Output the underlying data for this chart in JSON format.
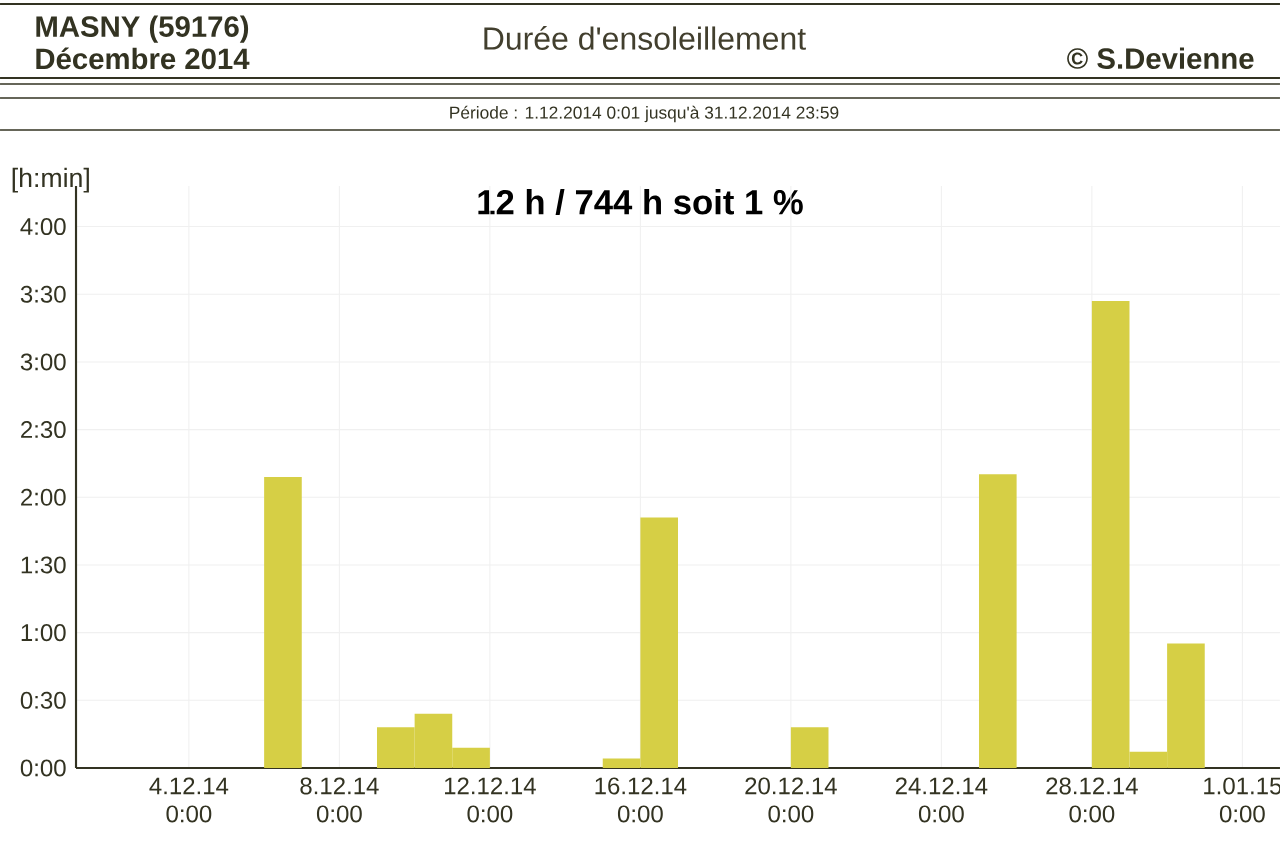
{
  "chart_data": {
    "type": "bar",
    "title": "Durée d'ensoleillement",
    "subtitle": "Période :  1.12.2014   0:01   jusqu'à  31.12.2014   23:59",
    "ylabel": "[h:min]",
    "annotations": [
      "MASNY (59176)",
      "Décembre  2014",
      "© S.Devienne",
      "12 h / 744 h  soit  1 %"
    ],
    "x": [
      "2014-12-06T12:00",
      "2014-12-09T12:00",
      "2014-12-10T12:00",
      "2014-12-11T12:00",
      "2014-12-15T12:00",
      "2014-12-16T12:00",
      "2014-12-20T12:00",
      "2014-12-25T12:00",
      "2014-12-28T12:00",
      "2014-12-29T12:00",
      "2014-12-30T12:00"
    ],
    "values": [
      2.15,
      0.3,
      0.4,
      0.15,
      0.07,
      1.85,
      0.3,
      2.17,
      3.45,
      0.12,
      0.92
    ],
    "color": "#d6cf45",
    "xlim": [
      "2014-12-01",
      "2015-01-02"
    ],
    "xticks": [
      {
        "value": "2014-12-04",
        "label": "4.12.14 0:00"
      },
      {
        "value": "2014-12-08",
        "label": "8.12.14 0:00"
      },
      {
        "value": "2014-12-12",
        "label": "12.12.14 0:00"
      },
      {
        "value": "2014-12-16",
        "label": "16.12.14 0:00"
      },
      {
        "value": "2014-12-20",
        "label": "20.12.14 0:00"
      },
      {
        "value": "2014-12-24",
        "label": "24.12.14 0:00"
      },
      {
        "value": "2014-12-28",
        "label": "28.12.14 0:00"
      },
      {
        "value": "2015-01-01",
        "label": "1.01.15 0:00"
      }
    ],
    "ylim": [
      0,
      4.3
    ],
    "yticks": [
      {
        "value": 0,
        "label": "0:00"
      },
      {
        "value": 0.5,
        "label": "0:30"
      },
      {
        "value": 1,
        "label": "1:00"
      },
      {
        "value": 1.5,
        "label": "1:30"
      },
      {
        "value": 2,
        "label": "2:00"
      },
      {
        "value": 2.5,
        "label": "2:30"
      },
      {
        "value": 3,
        "label": "3:00"
      },
      {
        "value": 3.5,
        "label": "3:30"
      },
      {
        "value": 4,
        "label": "4:00"
      }
    ],
    "grid": true
  }
}
